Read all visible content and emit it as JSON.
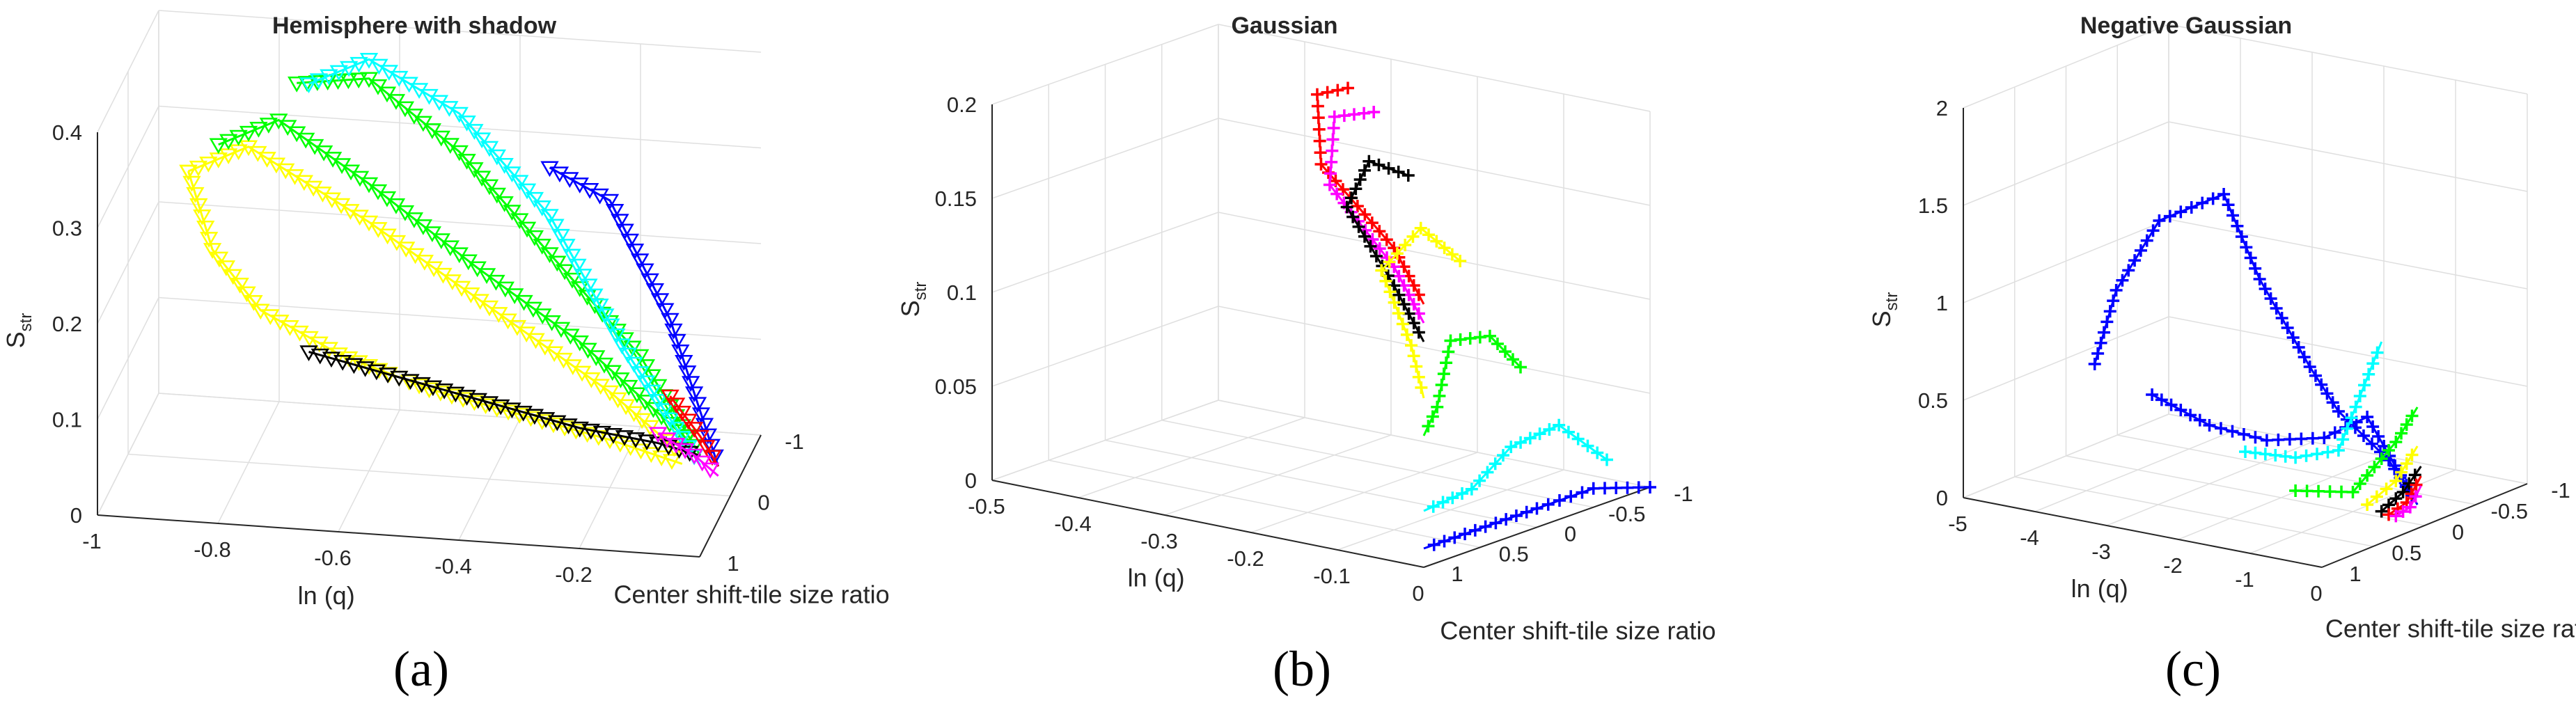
{
  "chart_data": [
    {
      "type": "line3d",
      "panel": "(a)",
      "title": "Hemisphere with shadow",
      "xlabel": "ln (q)",
      "ylabel": "Center shift-tile size ratio",
      "zlabel": "S",
      "zlabel_sub": "str",
      "xlim": [
        -1,
        0
      ],
      "ylim": [
        -1,
        1
      ],
      "zlim": [
        0,
        0.4
      ],
      "x_ticks": [
        "-1",
        "-0.8",
        "-0.6",
        "-0.4",
        "-0.2"
      ],
      "y_ticks": [
        "-1",
        "0",
        "1"
      ],
      "z_ticks": [
        "0",
        "0.1",
        "0.2",
        "0.3",
        "0.4"
      ],
      "marker": "triangle-down",
      "series": [
        {
          "color": "#ffff00",
          "x": [
            -0.9,
            -0.86,
            -0.78,
            -0.65,
            -0.5,
            -0.35,
            -0.2,
            -0.08
          ],
          "y": [
            0,
            0,
            0,
            0,
            0,
            0,
            0,
            0
          ],
          "z": [
            0.3,
            0.22,
            0.16,
            0.12,
            0.09,
            0.07,
            0.05,
            0.03
          ]
        },
        {
          "color": "#ffff00",
          "x": [
            -0.9,
            -0.8,
            -0.6,
            -0.4,
            -0.2,
            -0.08
          ],
          "y": [
            0,
            0,
            0,
            0,
            0,
            0
          ],
          "z": [
            0.3,
            0.33,
            0.26,
            0.18,
            0.1,
            0.04
          ]
        },
        {
          "color": "#00ff00",
          "x": [
            -0.85,
            -0.75,
            -0.6,
            -0.42,
            -0.25,
            -0.06
          ],
          "y": [
            0,
            0,
            0,
            0,
            0,
            0
          ],
          "z": [
            0.33,
            0.36,
            0.3,
            0.22,
            0.15,
            0.05
          ]
        },
        {
          "color": "#00ff00",
          "x": [
            -0.72,
            -0.6,
            -0.45,
            -0.3,
            -0.15,
            -0.05
          ],
          "y": [
            0,
            0,
            0,
            0,
            0,
            0
          ],
          "z": [
            0.4,
            0.41,
            0.34,
            0.24,
            0.14,
            0.04
          ]
        },
        {
          "color": "#00ffff",
          "x": [
            -0.7,
            -0.6,
            -0.45,
            -0.3,
            -0.18,
            -0.05
          ],
          "y": [
            0,
            0,
            0,
            0,
            0,
            0
          ],
          "z": [
            0.4,
            0.43,
            0.38,
            0.28,
            0.15,
            0.03
          ]
        },
        {
          "color": "#000000",
          "x": [
            -0.7,
            -0.55,
            -0.4,
            -0.25,
            -0.12,
            -0.05
          ],
          "y": [
            0,
            0,
            0,
            0,
            0,
            0
          ],
          "z": [
            0.12,
            0.1,
            0.08,
            0.06,
            0.05,
            0.04
          ]
        },
        {
          "color": "#0000ff",
          "x": [
            -0.3,
            -0.2,
            -0.1,
            -0.02
          ],
          "y": [
            0,
            0,
            0,
            0
          ],
          "z": [
            0.33,
            0.3,
            0.18,
            0.03
          ]
        },
        {
          "color": "#ff0000",
          "x": [
            -0.1,
            -0.05,
            -0.02
          ],
          "y": [
            0,
            0,
            0
          ],
          "z": [
            0.1,
            0.06,
            0.03
          ]
        },
        {
          "color": "#ff00ff",
          "x": [
            -0.12,
            -0.06,
            -0.02
          ],
          "y": [
            0,
            0,
            0
          ],
          "z": [
            0.06,
            0.04,
            0.02
          ]
        }
      ]
    },
    {
      "type": "line3d",
      "panel": "(b)",
      "title": "Gaussian",
      "xlabel": "ln (q)",
      "ylabel": "Center shift-tile size ratio",
      "zlabel": "S",
      "zlabel_sub": "str",
      "xlim": [
        -0.5,
        0
      ],
      "ylim": [
        -1,
        1
      ],
      "zlim": [
        0,
        0.2
      ],
      "x_ticks": [
        "-0.5",
        "-0.4",
        "-0.3",
        "-0.2",
        "-0.1",
        "0"
      ],
      "y_ticks": [
        "-1",
        "-0.5",
        "0",
        "0.5",
        "1"
      ],
      "z_ticks": [
        "0",
        "0.05",
        "0.1",
        "0.15",
        "0.2"
      ],
      "marker": "plus",
      "series": [
        {
          "color": "#ff0000",
          "x": [
            -0.35,
            -0.32,
            -0.25,
            -0.1,
            0
          ],
          "y": [
            1,
            0.5,
            0,
            -0.5,
            -1
          ],
          "z": [
            0.18,
            0.19,
            0.17,
            0.15,
            0.14
          ]
        },
        {
          "color": "#ff00ff",
          "x": [
            -0.32,
            -0.3,
            -0.24,
            -0.1,
            0
          ],
          "y": [
            1,
            0.5,
            0,
            -0.5,
            -1
          ],
          "z": [
            0.17,
            0.18,
            0.16,
            0.14,
            0.13
          ]
        },
        {
          "color": "#000000",
          "x": [
            -0.28,
            -0.26,
            -0.22,
            -0.1,
            0
          ],
          "y": [
            1,
            0.5,
            0,
            -0.5,
            -1
          ],
          "z": [
            0.14,
            0.16,
            0.15,
            0.13,
            0.12
          ]
        },
        {
          "color": "#ffff00",
          "x": [
            -0.22,
            -0.2,
            -0.18,
            -0.08,
            0
          ],
          "y": [
            1,
            0.5,
            0,
            -0.5,
            -1
          ],
          "z": [
            0.1,
            0.13,
            0.12,
            0.1,
            0.09
          ]
        },
        {
          "color": "#00ff00",
          "x": [
            -0.15,
            -0.12,
            -0.1,
            -0.05,
            0
          ],
          "y": [
            1,
            0.5,
            0,
            -0.5,
            -1
          ],
          "z": [
            0.05,
            0.08,
            0.09,
            0.07,
            0.07
          ]
        },
        {
          "color": "#00ffff",
          "x": [
            -0.05,
            -0.04,
            -0.03,
            -0.01,
            0
          ],
          "y": [
            1,
            0.5,
            0,
            -0.5,
            -1
          ],
          "z": [
            0.01,
            0.04,
            0.04,
            0.03,
            0.03
          ]
        },
        {
          "color": "#0000ff",
          "x": [
            0,
            0,
            0,
            0
          ],
          "y": [
            1,
            0.5,
            0,
            -1
          ],
          "z": [
            0,
            0.01,
            0.01,
            0.01
          ]
        }
      ]
    },
    {
      "type": "line3d",
      "panel": "(c)",
      "title": "Negative Gaussian",
      "xlabel": "ln (q)",
      "ylabel": "Center shift-tile size ratio",
      "zlabel": "S",
      "zlabel_sub": "str",
      "xlim": [
        -5,
        0
      ],
      "ylim": [
        -1,
        1
      ],
      "zlim": [
        0,
        2
      ],
      "x_ticks": [
        "-5",
        "-4",
        "-3",
        "-2",
        "-1",
        "0"
      ],
      "y_ticks": [
        "-1",
        "-0.5",
        "0",
        "0.5",
        "1"
      ],
      "z_ticks": [
        "0",
        "0.5",
        "1",
        "1.5",
        "2"
      ],
      "marker": "plus",
      "series": [
        {
          "color": "#0000ff",
          "x": [
            -4.6,
            -4.3,
            -3.7,
            -2.8,
            -2.3,
            -1.6,
            -1.2,
            -0.5,
            -0.1
          ],
          "y": [
            0,
            0,
            0,
            0,
            0,
            0,
            0,
            0,
            0
          ],
          "z": [
            0.5,
            0.9,
            1.3,
            1.5,
            1.1,
            0.7,
            0.5,
            0.3,
            0.1
          ]
        },
        {
          "color": "#0000ff",
          "x": [
            -3.8,
            -3.0,
            -2.2,
            -1.4,
            -0.8,
            -0.1
          ],
          "y": [
            0,
            0,
            0,
            0,
            0,
            0
          ],
          "z": [
            0.4,
            0.3,
            0.28,
            0.35,
            0.5,
            0.1
          ]
        },
        {
          "color": "#00ffff",
          "x": [
            -2.5,
            -1.8,
            -1.2,
            -0.6
          ],
          "y": [
            0,
            0,
            0,
            0
          ],
          "z": [
            0.2,
            0.22,
            0.3,
            0.9
          ]
        },
        {
          "color": "#00ff00",
          "x": [
            -1.8,
            -1.0,
            -0.4,
            -0.1
          ],
          "y": [
            0,
            0,
            0,
            0
          ],
          "z": [
            0.05,
            0.1,
            0.4,
            0.6
          ]
        },
        {
          "color": "#ffff00",
          "x": [
            -0.8,
            -0.4,
            -0.1
          ],
          "y": [
            0,
            0,
            0
          ],
          "z": [
            0.05,
            0.2,
            0.4
          ]
        },
        {
          "color": "#000000",
          "x": [
            -0.6,
            -0.3,
            -0.05
          ],
          "y": [
            0,
            0,
            0
          ],
          "z": [
            0.03,
            0.15,
            0.3
          ]
        },
        {
          "color": "#ff0000",
          "x": [
            -0.5,
            -0.25,
            -0.05
          ],
          "y": [
            0,
            0,
            0
          ],
          "z": [
            0.02,
            0.1,
            0.25
          ]
        },
        {
          "color": "#ff00ff",
          "x": [
            -0.4,
            -0.2,
            -0.05
          ],
          "y": [
            0,
            0,
            0
          ],
          "z": [
            0.02,
            0.08,
            0.2
          ]
        }
      ]
    }
  ]
}
